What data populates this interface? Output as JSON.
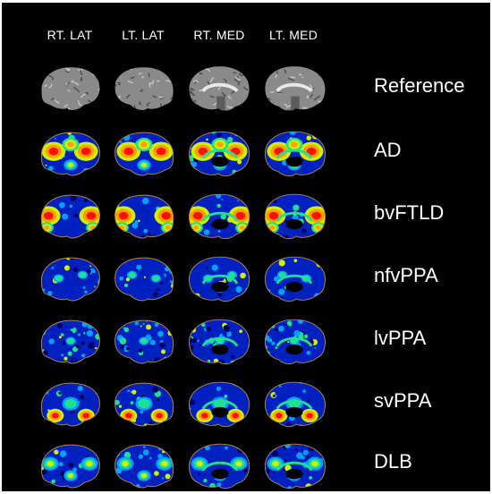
{
  "columns": [
    "RT. LAT",
    "LT. LAT",
    "RT. MED",
    "LT. MED"
  ],
  "rows": [
    {
      "label": "Reference",
      "kind": "reference"
    },
    {
      "label": "AD",
      "kind": "scan",
      "intensity": "high-temporoparietal"
    },
    {
      "label": "bvFTLD",
      "kind": "scan",
      "intensity": "high-frontal"
    },
    {
      "label": "nfvPPA",
      "kind": "scan",
      "intensity": "low-diffuse"
    },
    {
      "label": "lvPPA",
      "kind": "scan",
      "intensity": "low-speckled"
    },
    {
      "label": "svPPA",
      "kind": "scan",
      "intensity": "medium-temporal"
    },
    {
      "label": "DLB",
      "kind": "scan",
      "intensity": "medium-posterior"
    }
  ],
  "colors": {
    "background": "#000000",
    "outline": "#b8863b",
    "colormap": [
      "#000060",
      "#0020c0",
      "#00a0ff",
      "#20e090",
      "#d0f000",
      "#ffa000",
      "#ff1000"
    ]
  }
}
